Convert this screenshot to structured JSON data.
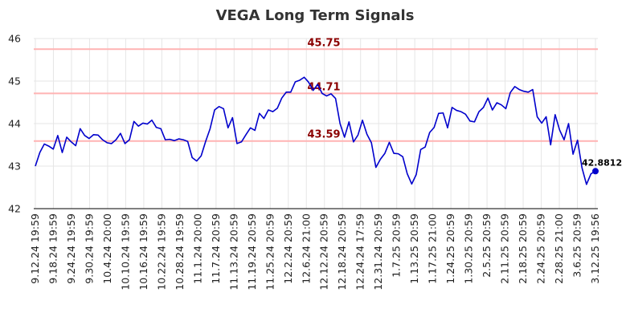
{
  "chart_data": {
    "type": "line",
    "title": "VEGA Long Term Signals",
    "xlabel": "",
    "ylabel": "",
    "ylim": [
      42,
      46
    ],
    "yticks": [
      "42",
      "43",
      "44",
      "45",
      "46"
    ],
    "grid": true,
    "colors": {
      "line": "#0000cc",
      "level_line": "#ffb3b3",
      "level_text": "#8b0000",
      "grid": "#e6e6e6",
      "axis": "#000000"
    },
    "levels": [
      {
        "value": 45.75,
        "label": "45.75"
      },
      {
        "value": 44.71,
        "label": "44.71"
      },
      {
        "value": 43.59,
        "label": "43.59"
      }
    ],
    "last_point": {
      "value": 42.8812,
      "label": "42.8812"
    },
    "x_tick_labels": [
      "9.12.24 19:59",
      "9.18.24 19:59",
      "9.24.24 19:59",
      "9.30.24 19:59",
      "10.4.24 20:00",
      "10.10.24 19:59",
      "10.16.24 19:59",
      "10.22.24 19:59",
      "10.28.24 19:59",
      "11.1.24 20:00",
      "11.7.24 20:59",
      "11.13.24 20:59",
      "11.19.24 20:59",
      "11.25.24 20:59",
      "12.2.24 20:59",
      "12.6.24 21:00",
      "12.12.24 20:59",
      "12.18.24 20:59",
      "12.24.24 17:59",
      "12.31.24 20:59",
      "1.7.25 20:59",
      "1.13.25 20:59",
      "1.17.25 21:00",
      "1.24.25 20:59",
      "1.30.25 20:59",
      "2.5.25 20:59",
      "2.11.25 20:59",
      "2.18.25 20:59",
      "2.24.25 20:59",
      "2.28.25 21:00",
      "3.6.25 20:59",
      "3.12.25 19:56"
    ],
    "series": [
      {
        "values": [
          43.0,
          43.32,
          43.52,
          43.47,
          43.4,
          43.72,
          43.32,
          43.68,
          43.57,
          43.48,
          43.88,
          43.72,
          43.65,
          43.74,
          43.73,
          43.62,
          43.55,
          43.53,
          43.62,
          43.77,
          43.53,
          43.62,
          44.05,
          43.94,
          44.01,
          43.99,
          44.08,
          43.91,
          43.88,
          43.62,
          43.63,
          43.6,
          43.64,
          43.62,
          43.58,
          43.2,
          43.12,
          43.24,
          43.58,
          43.88,
          44.32,
          44.4,
          44.35,
          43.9,
          44.14,
          43.53,
          43.57,
          43.74,
          43.9,
          43.84,
          44.24,
          44.12,
          44.32,
          44.28,
          44.36,
          44.6,
          44.74,
          44.74,
          44.98,
          45.02,
          45.09,
          44.97,
          44.78,
          44.92,
          44.71,
          44.65,
          44.7,
          44.59,
          44.0,
          43.68,
          44.04,
          43.57,
          43.73,
          44.08,
          43.75,
          43.55,
          42.97,
          43.16,
          43.3,
          43.56,
          43.3,
          43.29,
          43.22,
          42.82,
          42.58,
          42.8,
          43.39,
          43.45,
          43.79,
          43.91,
          44.24,
          44.25,
          43.9,
          44.38,
          44.31,
          44.28,
          44.22,
          44.06,
          44.04,
          44.28,
          44.38,
          44.6,
          44.32,
          44.49,
          44.44,
          44.35,
          44.73,
          44.87,
          44.8,
          44.76,
          44.74,
          44.8,
          44.16,
          44.01,
          44.16,
          43.5,
          44.21,
          43.85,
          43.62,
          44.0,
          43.28,
          43.61,
          42.96,
          42.57,
          42.82,
          42.8812
        ]
      }
    ]
  }
}
